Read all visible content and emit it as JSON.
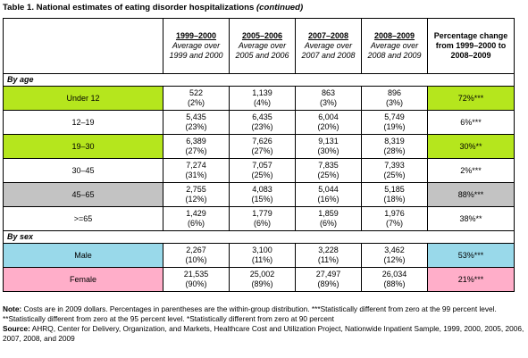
{
  "title": {
    "main": "Table 1. National estimates of eating disorder hospitalizations",
    "suffix": "(continued)"
  },
  "columns": [
    {
      "year": "1999–2000",
      "desc": "Average over 1999 and 2000"
    },
    {
      "year": "2005–2006",
      "desc": "Average over 2005 and 2006"
    },
    {
      "year": "2007–2008",
      "desc": "Average over 2007 and 2008"
    },
    {
      "year": "2008–2009",
      "desc": "Average over 2008 and 2009"
    }
  ],
  "pct_header": "Percentage change from 1999–2000 to 2008–2009",
  "sections": [
    {
      "label": "By age",
      "rows": [
        {
          "label": "Under 12",
          "hl": "green",
          "values": [
            [
              "522",
              "(2%)"
            ],
            [
              "1,139",
              "(4%)"
            ],
            [
              "863",
              "(3%)"
            ],
            [
              "896",
              "(3%)"
            ]
          ],
          "change": "72%***"
        },
        {
          "label": "12–19",
          "hl": "",
          "values": [
            [
              "5,435",
              "(23%)"
            ],
            [
              "6,435",
              "(23%)"
            ],
            [
              "6,004",
              "(20%)"
            ],
            [
              "5,749",
              "(19%)"
            ]
          ],
          "change": "6%***"
        },
        {
          "label": "19–30",
          "hl": "green",
          "values": [
            [
              "6,389",
              "(27%)"
            ],
            [
              "7,626",
              "(27%)"
            ],
            [
              "9,131",
              "(30%)"
            ],
            [
              "8,319",
              "(28%)"
            ]
          ],
          "change": "30%**"
        },
        {
          "label": "30–45",
          "hl": "",
          "values": [
            [
              "7,274",
              "(31%)"
            ],
            [
              "7,057",
              "(25%)"
            ],
            [
              "7,835",
              "(25%)"
            ],
            [
              "7,393",
              "(25%)"
            ]
          ],
          "change": "2%***"
        },
        {
          "label": "45–65",
          "hl": "gray",
          "values": [
            [
              "2,755",
              "(12%)"
            ],
            [
              "4,083",
              "(15%)"
            ],
            [
              "5,044",
              "(16%)"
            ],
            [
              "5,185",
              "(18%)"
            ]
          ],
          "change": "88%***"
        },
        {
          "label": ">=65",
          "hl": "",
          "values": [
            [
              "1,429",
              "(6%)"
            ],
            [
              "1,779",
              "(6%)"
            ],
            [
              "1,859",
              "(6%)"
            ],
            [
              "1,976",
              "(7%)"
            ]
          ],
          "change": "38%**"
        }
      ]
    },
    {
      "label": "By sex",
      "rows": [
        {
          "label": "Male",
          "hl": "blue",
          "values": [
            [
              "2,267",
              "(10%)"
            ],
            [
              "3,100",
              "(11%)"
            ],
            [
              "3,228",
              "(11%)"
            ],
            [
              "3,462",
              "(12%)"
            ]
          ],
          "change": "53%***"
        },
        {
          "label": "Female",
          "hl": "pink",
          "values": [
            [
              "21,535",
              "(90%)"
            ],
            [
              "25,002",
              "(89%)"
            ],
            [
              "27,497",
              "(89%)"
            ],
            [
              "26,034",
              "(88%)"
            ]
          ],
          "change": "21%***"
        }
      ]
    }
  ],
  "note": {
    "label": "Note:",
    "text": "Costs are in 2009 dollars. Percentages in parentheses are the within-group distribution. ***Statistically different from zero at the 99 percent level. **Statistically different from zero at the 95 percent level. *Statistically different from zero at 90 percent",
    "source_label": "Source:",
    "source": "AHRQ, Center for Delivery, Organization, and Markets, Healthcare Cost and Utilization Project, Nationwide Inpatient Sample, 1999, 2000, 2005, 2006, 2007, 2008, and 2009"
  }
}
